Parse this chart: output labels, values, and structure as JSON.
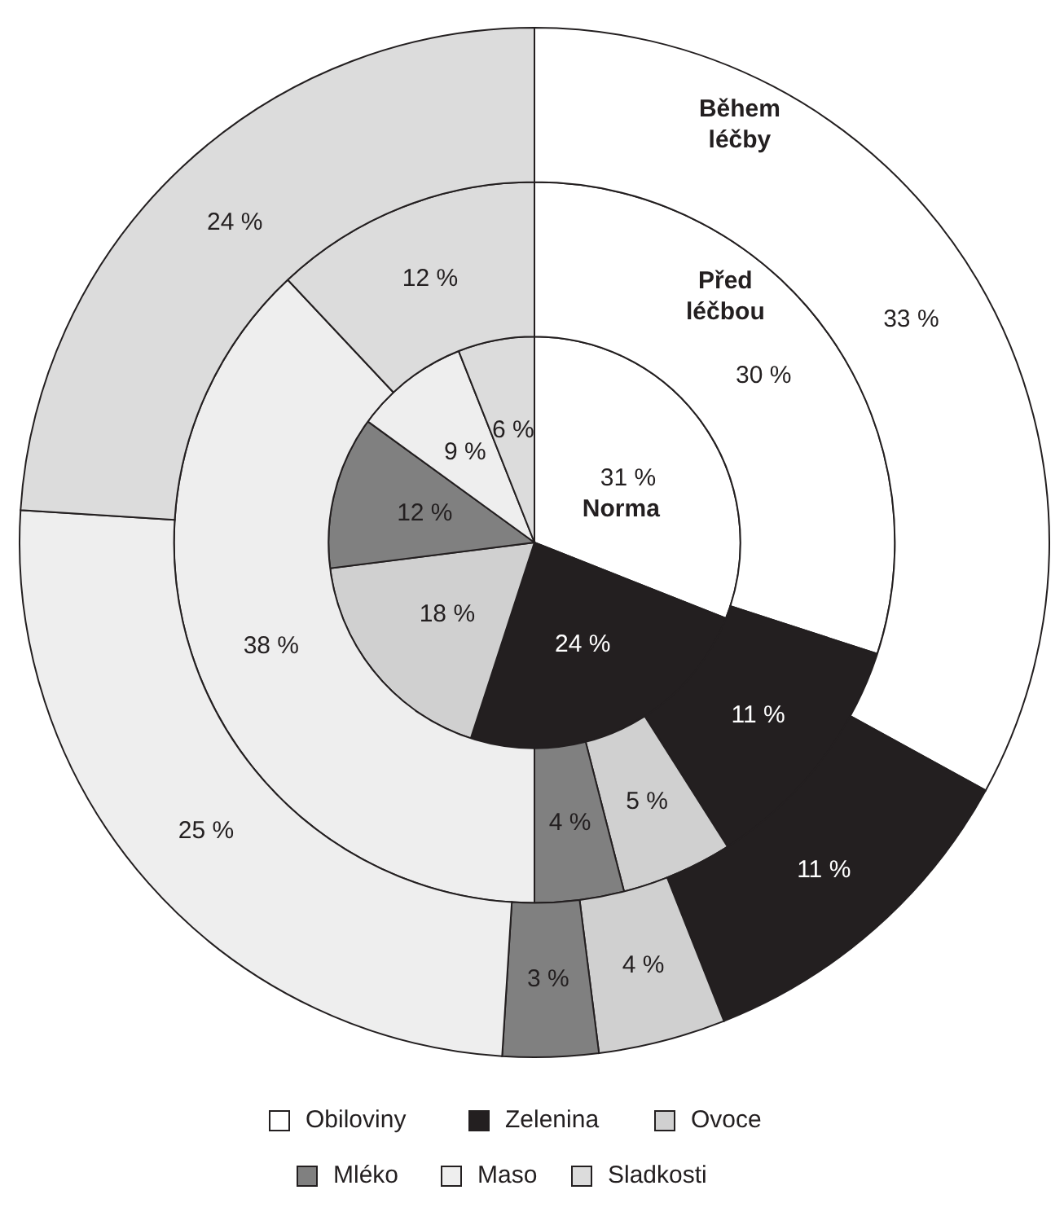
{
  "chart_data": {
    "type": "pie",
    "categories": [
      "Obiloviny",
      "Zelenina",
      "Ovoce",
      "Mléko",
      "Maso",
      "Sladkosti"
    ],
    "colors": [
      "#ffffff",
      "#231f20",
      "#d0d0d0",
      "#808080",
      "#eeeeee",
      "#dcdcdc"
    ],
    "series": [
      {
        "name": "Norma",
        "values": [
          31,
          24,
          18,
          12,
          9,
          6
        ],
        "value_labels": [
          "31 %",
          "24 %",
          "18 %",
          "12 %",
          "9 %",
          "6 %"
        ]
      },
      {
        "name": "Před léčbou",
        "values": [
          30,
          11,
          5,
          4,
          38,
          12
        ],
        "value_labels": [
          "30 %",
          "11 %",
          "5 %",
          "4 %",
          "38 %",
          "12 %"
        ]
      },
      {
        "name": "Během léčby",
        "values": [
          33,
          11,
          4,
          3,
          25,
          24
        ],
        "value_labels": [
          "33 %",
          "11 %",
          "4 %",
          "3 %",
          "25 %",
          "24 %"
        ]
      }
    ],
    "legend": "bottom"
  }
}
